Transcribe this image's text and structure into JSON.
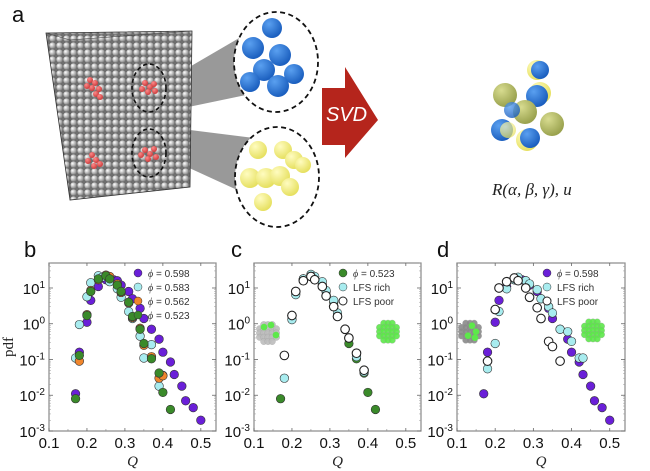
{
  "panel_labels": {
    "a": "a",
    "b": "b",
    "c": "c",
    "d": "d"
  },
  "panel_a": {
    "arrow_label": "SVD",
    "formula": "R(α, β, γ), u⃗",
    "cluster_colors": {
      "highlight": "#e35a5a",
      "template": "#2f78d6",
      "reference": "#f1ee7e",
      "overlay": "#b8c46a",
      "particle": "#d9d9d9"
    },
    "arrow_color": "#b5251c"
  },
  "colors": {
    "phi_0598": "#6a1fd8",
    "phi_0583": "#a8ecef",
    "phi_0562": "#f0862c",
    "phi_0523": "#3a8a2a",
    "lfs_rich": "#a8ecef",
    "lfs_poor": "#ffffff",
    "inset_green": "#5de84a"
  },
  "chart_data": [
    {
      "type": "scatter",
      "panel": "b",
      "xlabel": "Q",
      "ylabel": "pdf",
      "xlim": [
        0.1,
        0.54
      ],
      "ylim": [
        0.001,
        50
      ],
      "yscale": "log",
      "xticks": [
        "0.1",
        "0.2",
        "0.3",
        "0.4",
        "0.5"
      ],
      "yticks": [
        "10-3",
        "10-2",
        "10-1",
        "100",
        "101"
      ],
      "legend_position": "top-right",
      "series": [
        {
          "name": "ϕ = 0.598",
          "style": "filled",
          "color": "#6a1fd8",
          "x": [
            0.17,
            0.18,
            0.2,
            0.21,
            0.23,
            0.25,
            0.27,
            0.28,
            0.29,
            0.31,
            0.32,
            0.34,
            0.35,
            0.37,
            0.39,
            0.4,
            0.42,
            0.43,
            0.45,
            0.46,
            0.48,
            0.5
          ],
          "y": [
            0.011,
            0.16,
            1.1,
            4.5,
            11,
            17,
            17,
            16,
            12,
            8,
            5,
            2.7,
            1.4,
            0.7,
            0.37,
            0.16,
            0.085,
            0.038,
            0.018,
            0.007,
            0.0045,
            0.002
          ]
        },
        {
          "name": "ϕ = 0.583",
          "style": "filled",
          "color": "#a8ecef",
          "x": [
            0.17,
            0.18,
            0.2,
            0.21,
            0.23,
            0.24,
            0.26,
            0.28,
            0.29,
            0.31,
            0.32,
            0.34,
            0.35,
            0.37,
            0.39,
            0.4
          ],
          "y": [
            0.11,
            0.95,
            5.7,
            14,
            22,
            20,
            15,
            9.5,
            5.5,
            2.2,
            1.4,
            0.45,
            0.11,
            0.26,
            0.018,
            0.036
          ]
        },
        {
          "name": "ϕ = 0.562",
          "style": "filled",
          "color": "#f0862c",
          "x": [
            0.18,
            0.2,
            0.21,
            0.23,
            0.25,
            0.26,
            0.28,
            0.29,
            0.31,
            0.32,
            0.34,
            0.35,
            0.37,
            0.39,
            0.4
          ],
          "y": [
            0.09,
            1.8,
            8.5,
            17,
            23,
            21,
            13,
            7.5,
            3.8,
            1.5,
            0.75,
            0.25,
            0.12,
            0.03,
            0.035
          ]
        },
        {
          "name": "ϕ = 0.523",
          "style": "filled",
          "color": "#3a8a2a",
          "x": [
            0.17,
            0.18,
            0.2,
            0.21,
            0.23,
            0.25,
            0.26,
            0.28,
            0.29,
            0.31,
            0.32,
            0.34,
            0.35,
            0.37,
            0.39,
            0.4,
            0.42
          ],
          "y": [
            0.008,
            0.13,
            1.7,
            8,
            18,
            22,
            18,
            12,
            8,
            4,
            1.6,
            0.7,
            0.28,
            0.105,
            0.042,
            0.012,
            0.004
          ]
        }
      ]
    },
    {
      "type": "scatter",
      "panel": "c",
      "xlabel": "Q",
      "ylabel": "",
      "xlim": [
        0.1,
        0.54
      ],
      "ylim": [
        0.001,
        50
      ],
      "yscale": "log",
      "xticks": [
        "0.1",
        "0.2",
        "0.3",
        "0.4",
        "0.5"
      ],
      "yticks": [
        "10-3",
        "10-2",
        "10-1",
        "100",
        "101"
      ],
      "legend_position": "top-right",
      "series": [
        {
          "name": "ϕ = 0.523",
          "style": "filled",
          "color": "#3a8a2a",
          "x": [
            0.17,
            0.18,
            0.2,
            0.21,
            0.23,
            0.25,
            0.26,
            0.28,
            0.29,
            0.31,
            0.32,
            0.34,
            0.35,
            0.37,
            0.39,
            0.4,
            0.42
          ],
          "y": [
            0.008,
            0.13,
            1.7,
            8,
            18,
            22,
            18,
            12,
            8,
            4,
            1.6,
            0.7,
            0.28,
            0.105,
            0.042,
            0.012,
            0.004
          ]
        },
        {
          "name": "LFS rich",
          "style": "filled",
          "color": "#a8ecef",
          "x": [
            0.18,
            0.2,
            0.21,
            0.23,
            0.25,
            0.26,
            0.28,
            0.29,
            0.31,
            0.32,
            0.34,
            0.35,
            0.37,
            0.39
          ],
          "y": [
            0.03,
            1.3,
            6.5,
            18,
            24,
            21,
            15,
            8.5,
            4.5,
            2,
            0.7,
            0.4,
            0.12,
            0.045
          ]
        },
        {
          "name": "LFS poor",
          "style": "open",
          "color": "#ffffff",
          "x": [
            0.18,
            0.2,
            0.21,
            0.23,
            0.25,
            0.26,
            0.28,
            0.29,
            0.31,
            0.32,
            0.34,
            0.35,
            0.37,
            0.39
          ],
          "y": [
            0.13,
            1.7,
            8,
            16,
            21,
            17,
            11,
            6,
            3,
            1.6,
            0.7,
            0.4,
            0.15,
            0.05
          ]
        }
      ]
    },
    {
      "type": "scatter",
      "panel": "d",
      "xlabel": "Q",
      "ylabel": "",
      "xlim": [
        0.1,
        0.54
      ],
      "ylim": [
        0.001,
        50
      ],
      "yscale": "log",
      "xticks": [
        "0.1",
        "0.2",
        "0.3",
        "0.4",
        "0.5"
      ],
      "yticks": [
        "10-3",
        "10-2",
        "10-1",
        "100",
        "101"
      ],
      "legend_position": "top-right",
      "series": [
        {
          "name": "ϕ = 0.598",
          "style": "filled",
          "color": "#6a1fd8",
          "x": [
            0.17,
            0.18,
            0.2,
            0.21,
            0.23,
            0.25,
            0.27,
            0.28,
            0.29,
            0.31,
            0.32,
            0.34,
            0.35,
            0.37,
            0.39,
            0.4,
            0.42,
            0.43,
            0.45,
            0.46,
            0.48,
            0.5
          ],
          "y": [
            0.011,
            0.16,
            1.1,
            4.5,
            11,
            17,
            17,
            16,
            12,
            8,
            5,
            2.7,
            1.4,
            0.7,
            0.37,
            0.16,
            0.085,
            0.038,
            0.018,
            0.007,
            0.0045,
            0.002
          ]
        },
        {
          "name": "LFS rich",
          "style": "filled",
          "color": "#a8ecef",
          "x": [
            0.18,
            0.2,
            0.21,
            0.23,
            0.25,
            0.26,
            0.28,
            0.29,
            0.31,
            0.32,
            0.34,
            0.35,
            0.37,
            0.39,
            0.4,
            0.42,
            0.43
          ],
          "y": [
            0.055,
            0.28,
            2.2,
            9.5,
            17,
            20,
            16,
            13,
            9,
            5,
            3,
            2,
            0.7,
            0.6,
            0.32,
            0.11,
            0.11
          ]
        },
        {
          "name": "LFS poor",
          "style": "open",
          "color": "#ffffff",
          "x": [
            0.18,
            0.2,
            0.21,
            0.23,
            0.25,
            0.26,
            0.28,
            0.29,
            0.31,
            0.32,
            0.34,
            0.35,
            0.37
          ],
          "y": [
            0.09,
            2.5,
            10,
            15,
            19,
            16,
            10,
            5.5,
            2.8,
            1.4,
            0.32,
            0.23,
            0.09
          ]
        }
      ]
    }
  ]
}
